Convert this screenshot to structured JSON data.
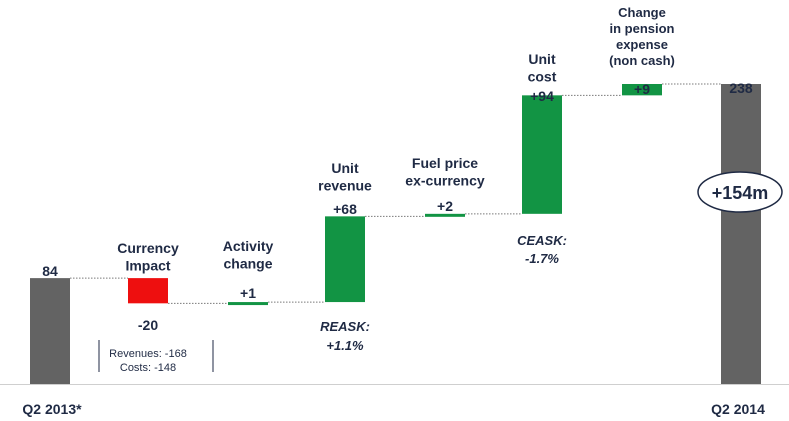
{
  "chart_data": {
    "type": "bar",
    "subtype": "waterfall",
    "categories": [
      "Q2 2013*",
      "Currency Impact",
      "Activity change",
      "Unit revenue",
      "Fuel price ex-currency",
      "Unit cost",
      "Change in pension expense (non cash)",
      "Q2 2014"
    ],
    "values": [
      84,
      -20,
      1,
      68,
      2,
      94,
      9,
      238
    ],
    "value_labels": [
      "84",
      "-20",
      "+1",
      "+68",
      "+2",
      "+94",
      "+9",
      "238"
    ],
    "kinds": [
      "total",
      "delta",
      "delta",
      "delta",
      "delta",
      "delta",
      "delta",
      "total"
    ],
    "colors": {
      "total": "#636363",
      "increase": "#129444",
      "decrease": "#ee0f0f",
      "text": "#1f2a44",
      "connector": "#7a7a7a"
    },
    "category_lines": [
      [
        "Q2 2013*"
      ],
      [
        "Currency",
        "Impact"
      ],
      [
        "Activity",
        "change"
      ],
      [
        "Unit",
        "revenue"
      ],
      [
        "Fuel price",
        "ex-currency"
      ],
      [
        "Unit",
        "cost"
      ],
      [
        "Change",
        "in pension",
        "expense",
        "(non cash)"
      ],
      [
        "Q2 2014"
      ]
    ],
    "annotations": {
      "currency_breakdown": [
        "Revenues: -168",
        "Costs: -148"
      ],
      "reask": [
        "REASK:",
        "+1.1%"
      ],
      "ceask": [
        "CEASK:",
        "-1.7%"
      ],
      "total_change": "+154m"
    },
    "grid": false,
    "legend": "none"
  }
}
